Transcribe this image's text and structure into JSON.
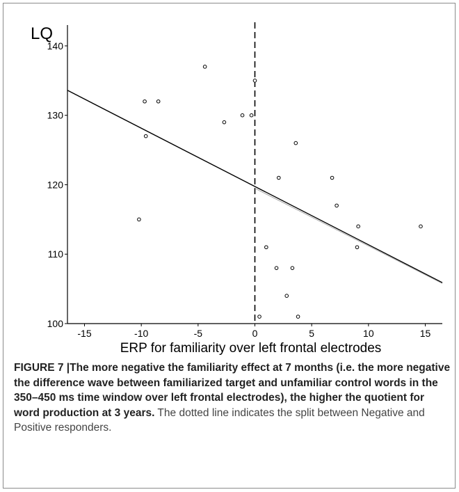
{
  "chart_data": {
    "type": "scatter",
    "ylabel": "LQ",
    "xlabel": "ERP for familiarity over left frontal electrodes",
    "xlim": [
      -16.5,
      16.5
    ],
    "ylim": [
      100,
      143
    ],
    "xticks": [
      -15,
      -10,
      -5,
      0,
      5,
      10,
      15
    ],
    "yticks": [
      100,
      110,
      120,
      130,
      140
    ],
    "points": [
      {
        "x": -10.2,
        "y": 115
      },
      {
        "x": -9.7,
        "y": 132
      },
      {
        "x": -9.6,
        "y": 127
      },
      {
        "x": -8.5,
        "y": 132
      },
      {
        "x": -4.4,
        "y": 137
      },
      {
        "x": -2.7,
        "y": 129
      },
      {
        "x": -1.1,
        "y": 130
      },
      {
        "x": -0.3,
        "y": 130
      },
      {
        "x": 0.0,
        "y": 135
      },
      {
        "x": 0.4,
        "y": 101
      },
      {
        "x": 1.0,
        "y": 111
      },
      {
        "x": 1.9,
        "y": 108
      },
      {
        "x": 2.1,
        "y": 121
      },
      {
        "x": 2.8,
        "y": 104
      },
      {
        "x": 3.3,
        "y": 108
      },
      {
        "x": 3.6,
        "y": 126
      },
      {
        "x": 3.8,
        "y": 101
      },
      {
        "x": 6.8,
        "y": 121
      },
      {
        "x": 7.2,
        "y": 117
      },
      {
        "x": 9.0,
        "y": 111
      },
      {
        "x": 9.1,
        "y": 114
      },
      {
        "x": 14.6,
        "y": 114
      }
    ],
    "fit_line": [
      {
        "x": -16.5,
        "y": 133.6
      },
      {
        "x": 16.5,
        "y": 105.9
      }
    ],
    "split_line_x": 0,
    "grid": false
  },
  "caption": {
    "label": "FIGURE 7 |",
    "bold_text": "The more negative the familiarity effect at 7 months (i.e. the more negative the difference wave between familiarized target and unfamiliar control words in the 350–450 ms time window over left frontal electrodes), the higher the quotient for word production at 3 years.",
    "text": " The dotted line indicates the split between Negative and Positive responders."
  }
}
